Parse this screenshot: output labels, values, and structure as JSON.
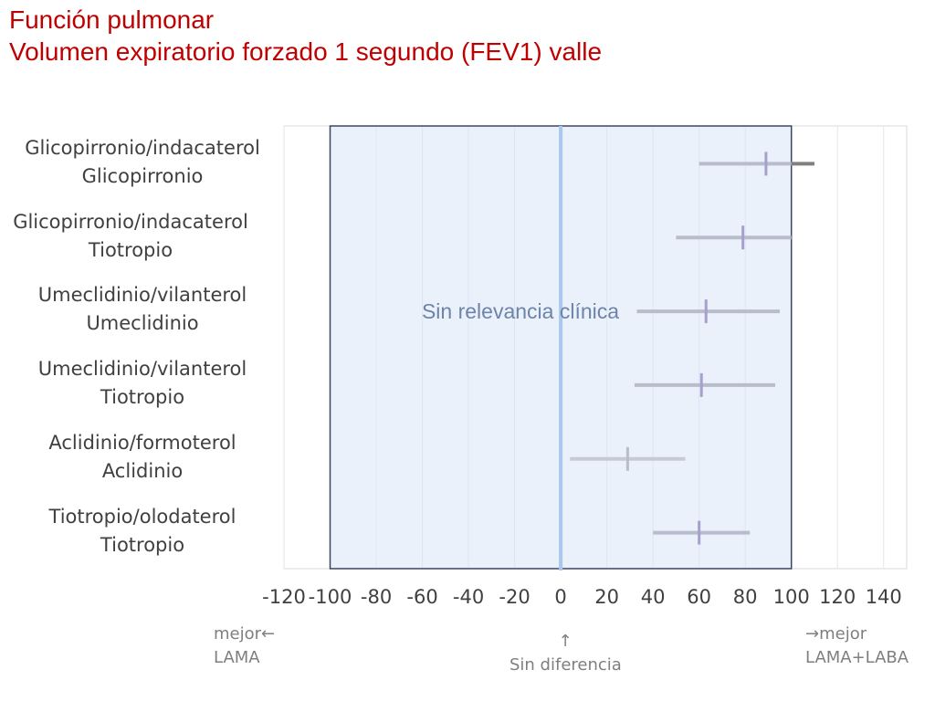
{
  "title": {
    "line1": "Función pulmonar",
    "line2": "Volumen expiratorio forzado 1 segundo (FEV1) valle"
  },
  "chart_data": {
    "type": "forest",
    "xlim": [
      -120,
      150
    ],
    "xticks": [
      -120,
      -100,
      -80,
      -60,
      -40,
      -20,
      0,
      20,
      40,
      60,
      80,
      100,
      120,
      140
    ],
    "grid": "vertical",
    "region": {
      "from": -100,
      "to": 100,
      "label": "Sin relevancia clínica",
      "color": "#e8f0fb",
      "border": "#3a4660"
    },
    "zero_line_color": "#a9c8ec",
    "rows": [
      {
        "line1": "Glicopirronio/indacaterol",
        "line2": "Glicopirronio",
        "estimate": 89,
        "low": 60,
        "high": 110,
        "color": "#b8bccb",
        "tick_color": "#a8a0cc",
        "overflow_color": "#7f7f7f"
      },
      {
        "line1": "Glicopirronio/indacaterol",
        "line2": "Tiotropio",
        "estimate": 79,
        "low": 50,
        "high": 100,
        "color": "#b8bccb",
        "tick_color": "#a8a0cc"
      },
      {
        "line1": "Umeclidinio/vilanterol",
        "line2": "Umeclidinio",
        "estimate": 63,
        "low": 33,
        "high": 95,
        "color": "#b8bccb",
        "tick_color": "#a8a0cc"
      },
      {
        "line1": "Umeclidinio/vilanterol",
        "line2": "Tiotropio",
        "estimate": 61,
        "low": 32,
        "high": 93,
        "color": "#b8bccb",
        "tick_color": "#a8a0cc"
      },
      {
        "line1": "Aclidinio/formoterol",
        "line2": "Aclidinio",
        "estimate": 29,
        "low": 4,
        "high": 54,
        "color": "#c7cad6",
        "tick_color": "#b8bccb"
      },
      {
        "line1": "Tiotropio/olodaterol",
        "line2": "Tiotropio",
        "estimate": 60,
        "low": 40,
        "high": 82,
        "color": "#b8bccb",
        "tick_color": "#a8a0cc"
      }
    ]
  },
  "notes": {
    "left_line1": "mejor←",
    "left_line2": "LAMA",
    "center_arrow": "↑",
    "center_text": "Sin diferencia",
    "right_line1": "→mejor",
    "right_line2": "LAMA+LABA"
  }
}
